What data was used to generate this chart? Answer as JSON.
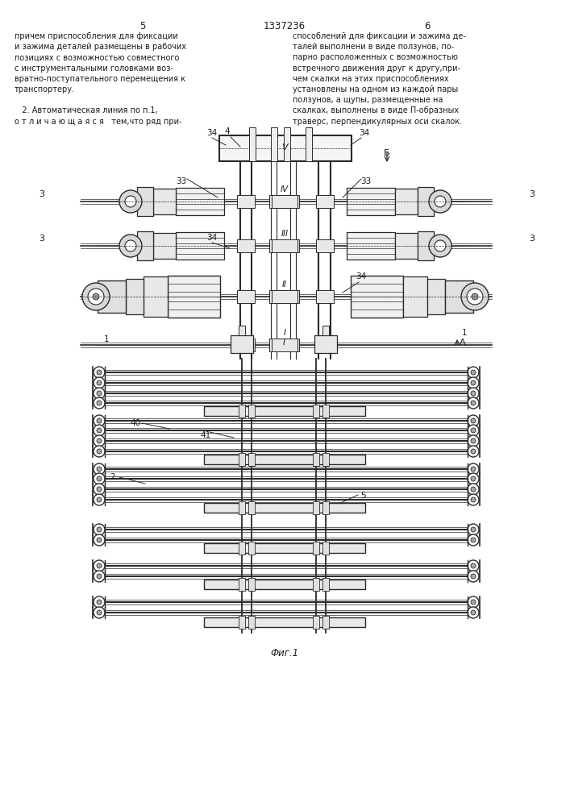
{
  "page_number_left": "5",
  "page_number_center": "1337236",
  "page_number_right": "6",
  "text_left": [
    "причем приспособления для фиксации",
    "и зажима деталей размещены в рабочих",
    "позициях с возможностью совместного",
    "с инструментальными головками воз-",
    "вратно-поступательного перемещения к",
    "транспортеру.",
    "",
    "   2. Автоматическая линия по п.1,",
    "о т л и ч а ю щ а я с я   тем,что ряд при-"
  ],
  "text_right": [
    "способлений для фиксации и зажима де-",
    "талей выполнени в виде ползунов, по-",
    "парно расположенных с возможностью",
    "встречного движения друг к другу,при-",
    "чем скалки на этих приспособлениях",
    "установлены на одном из каждой пары",
    "ползунов, а щупы, размещенные на",
    "скалках, выполнены в виде П-образных",
    "траверс, перпендикулярных оси скалок."
  ],
  "fig_caption": "Фиг.1",
  "bg_color": "#ffffff",
  "line_color": "#2a2a2a",
  "text_color": "#1a1a1a"
}
